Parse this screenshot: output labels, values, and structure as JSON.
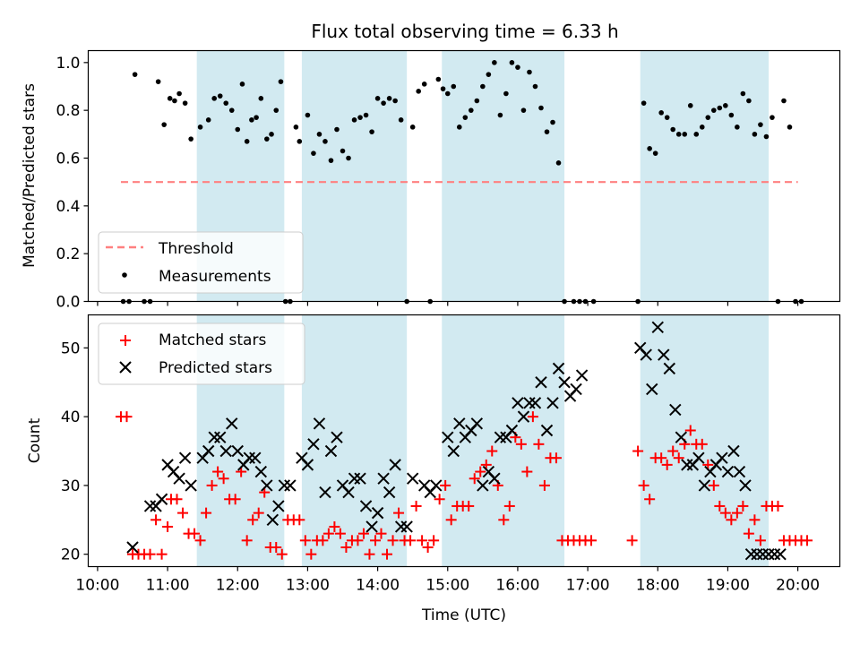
{
  "title": "Flux total observing time = 6.33 h",
  "colors": {
    "band": "#add8e6",
    "threshold": "#ff8080",
    "measurement": "#000000",
    "matched": "#ff0000",
    "predicted": "#000000"
  },
  "chart_data": [
    {
      "type": "scatter",
      "ylabel": "Matched/Predicted stars",
      "xlabel": "",
      "xlim": [
        "09:52",
        "20:36"
      ],
      "ylim": [
        0,
        1.05
      ],
      "yticks": [
        "0.0",
        "0.2",
        "0.4",
        "0.6",
        "0.8",
        "1.0"
      ],
      "shaded_intervals": [
        [
          "11:25",
          "12:40"
        ],
        [
          "12:55",
          "14:25"
        ],
        [
          "14:55",
          "16:40"
        ],
        [
          "17:45",
          "19:35"
        ]
      ],
      "legend": {
        "position": "lower-left",
        "entries": [
          "Threshold",
          "Measurements"
        ]
      },
      "series": [
        {
          "name": "Threshold",
          "style": "dashed-line",
          "x": [
            "10:20",
            "20:00"
          ],
          "y": [
            0.5,
            0.5
          ]
        },
        {
          "name": "Measurements",
          "style": "dot",
          "x": [
            "10:22",
            "10:27",
            "10:32",
            "10:40",
            "10:45",
            "10:52",
            "10:57",
            "11:02",
            "11:06",
            "11:10",
            "11:15",
            "11:20",
            "11:28",
            "11:35",
            "11:40",
            "11:45",
            "11:50",
            "11:55",
            "12:00",
            "12:04",
            "12:08",
            "12:12",
            "12:16",
            "12:20",
            "12:25",
            "12:29",
            "12:33",
            "12:37",
            "12:41",
            "12:45",
            "12:50",
            "12:53",
            "13:00",
            "13:05",
            "13:10",
            "13:15",
            "13:20",
            "13:25",
            "13:30",
            "13:35",
            "13:40",
            "13:45",
            "13:50",
            "13:55",
            "14:00",
            "14:05",
            "14:10",
            "14:15",
            "14:20",
            "14:25",
            "14:30",
            "14:35",
            "14:40",
            "14:45",
            "14:52",
            "14:56",
            "15:00",
            "15:05",
            "15:10",
            "15:15",
            "15:20",
            "15:25",
            "15:30",
            "15:35",
            "15:40",
            "15:45",
            "15:50",
            "15:55",
            "16:00",
            "16:05",
            "16:10",
            "16:15",
            "16:20",
            "16:25",
            "16:30",
            "16:35",
            "16:40",
            "16:48",
            "16:53",
            "16:58",
            "17:05",
            "17:43",
            "17:48",
            "17:53",
            "17:58",
            "18:03",
            "18:08",
            "18:13",
            "18:18",
            "18:23",
            "18:28",
            "18:33",
            "18:38",
            "18:43",
            "18:48",
            "18:53",
            "18:58",
            "19:03",
            "19:08",
            "19:13",
            "19:18",
            "19:23",
            "19:28",
            "19:33",
            "19:38",
            "19:43",
            "19:48",
            "19:53",
            "19:58",
            "20:03"
          ],
          "y": [
            0.0,
            0.0,
            0.95,
            0.0,
            0.0,
            0.92,
            0.74,
            0.85,
            0.84,
            0.87,
            0.83,
            0.68,
            0.73,
            0.76,
            0.85,
            0.86,
            0.83,
            0.8,
            0.72,
            0.91,
            0.67,
            0.76,
            0.77,
            0.85,
            0.68,
            0.7,
            0.8,
            0.92,
            0.0,
            0.0,
            0.73,
            0.67,
            0.78,
            0.62,
            0.7,
            0.67,
            0.59,
            0.72,
            0.63,
            0.6,
            0.76,
            0.77,
            0.78,
            0.71,
            0.85,
            0.83,
            0.85,
            0.84,
            0.76,
            0.0,
            0.73,
            0.88,
            0.91,
            0.0,
            0.93,
            0.89,
            0.87,
            0.9,
            0.73,
            0.77,
            0.8,
            0.84,
            0.9,
            0.95,
            1.0,
            0.78,
            0.87,
            1.0,
            0.98,
            0.8,
            0.96,
            0.9,
            0.81,
            0.71,
            0.75,
            0.58,
            0.0,
            0.0,
            0.0,
            0.0,
            0.0,
            0.0,
            0.83,
            0.64,
            0.62,
            0.79,
            0.77,
            0.72,
            0.7,
            0.7,
            0.82,
            0.7,
            0.73,
            0.77,
            0.8,
            0.81,
            0.82,
            0.78,
            0.73,
            0.87,
            0.84,
            0.7,
            0.74,
            0.69,
            0.77,
            0.0,
            0.84,
            0.73,
            0.0,
            0.0
          ]
        }
      ]
    },
    {
      "type": "scatter",
      "ylabel": "Count",
      "xlabel": "Time (UTC)",
      "xlim": [
        "09:52",
        "20:36"
      ],
      "ylim": [
        18.2,
        54.8
      ],
      "yticks": [
        "20",
        "30",
        "40",
        "50"
      ],
      "xticks": [
        "10:00",
        "11:00",
        "12:00",
        "13:00",
        "14:00",
        "15:00",
        "16:00",
        "17:00",
        "18:00",
        "19:00",
        "20:00"
      ],
      "shaded_intervals": [
        [
          "11:25",
          "12:40"
        ],
        [
          "12:55",
          "14:25"
        ],
        [
          "14:55",
          "16:40"
        ],
        [
          "17:45",
          "19:35"
        ]
      ],
      "legend": {
        "position": "upper-left",
        "entries": [
          "Matched stars",
          "Predicted stars"
        ]
      },
      "series": [
        {
          "name": "Matched stars",
          "marker": "plus",
          "x": [
            "10:20",
            "10:25",
            "10:30",
            "10:35",
            "10:40",
            "10:45",
            "10:50",
            "10:55",
            "11:00",
            "11:03",
            "11:08",
            "11:13",
            "11:18",
            "11:23",
            "11:28",
            "11:33",
            "11:38",
            "11:43",
            "11:48",
            "11:53",
            "11:58",
            "12:03",
            "12:08",
            "12:13",
            "12:18",
            "12:23",
            "12:28",
            "12:33",
            "12:38",
            "12:43",
            "12:48",
            "12:53",
            "12:58",
            "13:03",
            "13:08",
            "13:13",
            "13:18",
            "13:23",
            "13:28",
            "13:33",
            "13:38",
            "13:43",
            "13:48",
            "13:53",
            "13:58",
            "14:03",
            "14:08",
            "14:13",
            "14:18",
            "14:23",
            "14:28",
            "14:33",
            "14:38",
            "14:43",
            "14:48",
            "14:53",
            "14:58",
            "15:03",
            "15:08",
            "15:13",
            "15:18",
            "15:23",
            "15:28",
            "15:33",
            "15:38",
            "15:43",
            "15:48",
            "15:53",
            "15:58",
            "16:03",
            "16:08",
            "16:13",
            "16:18",
            "16:23",
            "16:28",
            "16:33",
            "16:38",
            "16:43",
            "16:48",
            "16:53",
            "16:58",
            "17:03",
            "17:38",
            "17:43",
            "17:48",
            "17:53",
            "17:58",
            "18:03",
            "18:08",
            "18:13",
            "18:18",
            "18:23",
            "18:28",
            "18:33",
            "18:38",
            "18:43",
            "18:48",
            "18:53",
            "18:58",
            "19:03",
            "19:08",
            "19:13",
            "19:18",
            "19:23",
            "19:28",
            "19:33",
            "19:38",
            "19:43",
            "19:48",
            "19:53",
            "19:58",
            "20:03",
            "20:08"
          ],
          "y": [
            40,
            40,
            20,
            20,
            20,
            20,
            25,
            20,
            24,
            28,
            28,
            26,
            23,
            23,
            22,
            26,
            30,
            32,
            31,
            28,
            28,
            32,
            22,
            25,
            26,
            29,
            21,
            21,
            20,
            25,
            25,
            25,
            22,
            20,
            22,
            22,
            23,
            24,
            23,
            21,
            22,
            22,
            23,
            20,
            22,
            23,
            20,
            22,
            26,
            22,
            22,
            27,
            22,
            21,
            22,
            28,
            30,
            25,
            27,
            27,
            27,
            31,
            32,
            33,
            35,
            30,
            25,
            27,
            37,
            36,
            32,
            40,
            36,
            30,
            34,
            34,
            22,
            22,
            22,
            22,
            22,
            22,
            22,
            35,
            30,
            28,
            34,
            34,
            33,
            35,
            34,
            36,
            38,
            36,
            36,
            33,
            30,
            27,
            26,
            25,
            26,
            27,
            23,
            25,
            22,
            27,
            27,
            27,
            22,
            22,
            22,
            22,
            22
          ]
        },
        {
          "name": "Predicted stars",
          "marker": "x",
          "x": [
            "10:30",
            "10:45",
            "10:50",
            "10:55",
            "11:00",
            "11:05",
            "11:10",
            "11:15",
            "11:20",
            "11:30",
            "11:35",
            "11:40",
            "11:45",
            "11:50",
            "11:55",
            "12:00",
            "12:05",
            "12:10",
            "12:15",
            "12:20",
            "12:25",
            "12:30",
            "12:35",
            "12:40",
            "12:45",
            "12:55",
            "13:00",
            "13:05",
            "13:10",
            "13:15",
            "13:20",
            "13:25",
            "13:30",
            "13:35",
            "13:40",
            "13:45",
            "13:50",
            "13:55",
            "14:00",
            "14:05",
            "14:10",
            "14:15",
            "14:20",
            "14:25",
            "14:30",
            "14:40",
            "14:45",
            "14:50",
            "15:00",
            "15:05",
            "15:10",
            "15:15",
            "15:20",
            "15:25",
            "15:30",
            "15:35",
            "15:40",
            "15:45",
            "15:50",
            "15:55",
            "16:00",
            "16:05",
            "16:10",
            "16:15",
            "16:20",
            "16:25",
            "16:30",
            "16:35",
            "16:40",
            "16:45",
            "16:50",
            "16:55",
            "17:45",
            "17:50",
            "17:55",
            "18:00",
            "18:05",
            "18:10",
            "18:15",
            "18:20",
            "18:25",
            "18:30",
            "18:35",
            "18:40",
            "18:45",
            "18:50",
            "18:55",
            "19:00",
            "19:05",
            "19:10",
            "19:15",
            "19:20",
            "19:25",
            "19:30",
            "19:35",
            "19:40",
            "19:45"
          ],
          "y": [
            21,
            27,
            27,
            28,
            33,
            32,
            31,
            34,
            30,
            34,
            35,
            37,
            37,
            35,
            39,
            35,
            33,
            34,
            34,
            32,
            30,
            25,
            27,
            30,
            30,
            34,
            33,
            36,
            39,
            29,
            35,
            37,
            30,
            29,
            31,
            31,
            27,
            24,
            26,
            31,
            29,
            33,
            24,
            24,
            31,
            30,
            29,
            30,
            37,
            35,
            39,
            37,
            38,
            39,
            30,
            32,
            31,
            37,
            37,
            38,
            42,
            40,
            42,
            42,
            45,
            38,
            42,
            47,
            45,
            43,
            44,
            46,
            50,
            49,
            44,
            53,
            49,
            47,
            41,
            37,
            33,
            33,
            34,
            30,
            32,
            33,
            34,
            32,
            35,
            32,
            30,
            20,
            20,
            20,
            20,
            20,
            20
          ]
        }
      ]
    }
  ]
}
